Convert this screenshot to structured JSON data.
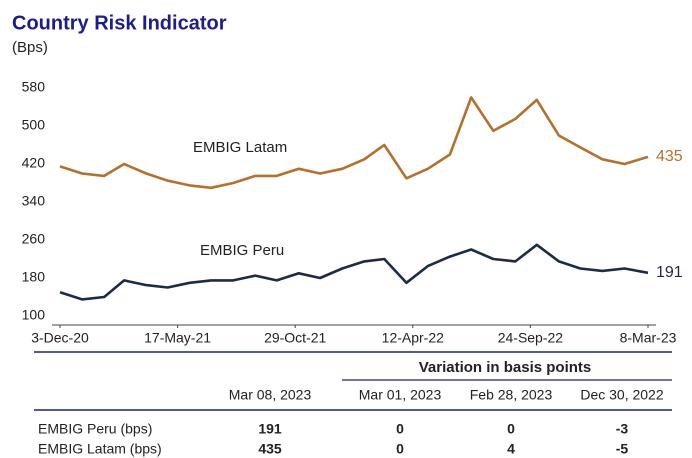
{
  "chart_data": {
    "type": "line",
    "title": "Country Risk Indicator",
    "subtitle": "(Bps)",
    "x": [
      "2020-12-03",
      "2021-01-03",
      "2021-02-03",
      "2021-03-03",
      "2021-04-03",
      "2021-05-03",
      "2021-06-03",
      "2021-07-03",
      "2021-08-03",
      "2021-09-03",
      "2021-10-03",
      "2021-11-03",
      "2021-12-03",
      "2022-01-03",
      "2022-02-03",
      "2022-03-03",
      "2022-04-03",
      "2022-05-03",
      "2022-06-03",
      "2022-07-03",
      "2022-08-03",
      "2022-09-03",
      "2022-10-03",
      "2022-11-03",
      "2022-12-03",
      "2023-01-03",
      "2023-02-03",
      "2023-03-08"
    ],
    "series": [
      {
        "name": "EMBIG Latam",
        "color": "#b5702c",
        "values": [
          415,
          400,
          395,
          420,
          400,
          385,
          375,
          370,
          380,
          395,
          395,
          410,
          400,
          410,
          430,
          460,
          390,
          410,
          440,
          560,
          490,
          515,
          555,
          480,
          455,
          430,
          420,
          435
        ]
      },
      {
        "name": "EMBIG Peru",
        "color": "#1c2b48",
        "values": [
          150,
          135,
          140,
          175,
          165,
          160,
          170,
          175,
          175,
          185,
          175,
          190,
          180,
          200,
          215,
          220,
          170,
          205,
          225,
          240,
          220,
          215,
          250,
          215,
          200,
          195,
          200,
          191
        ]
      }
    ],
    "xlim": [
      "2020-12-03",
      "2023-03-08"
    ],
    "xticks": [
      {
        "value": "2020-12-03",
        "label": "3-Dec-20"
      },
      {
        "value": "2021-05-17",
        "label": "17-May-21"
      },
      {
        "value": "2021-10-29",
        "label": "29-Oct-21"
      },
      {
        "value": "2022-04-12",
        "label": "12-Apr-22"
      },
      {
        "value": "2022-09-24",
        "label": "24-Sep-22"
      },
      {
        "value": "2023-03-08",
        "label": "8-Mar-23"
      }
    ],
    "ylim": [
      100,
      580
    ],
    "yticks": [
      100,
      180,
      260,
      340,
      420,
      500,
      580
    ],
    "grid": false
  },
  "table": {
    "group_header": "Variation in basis points",
    "columns": [
      "Mar 08, 2023",
      "Mar 01, 2023",
      "Feb 28, 2023",
      "Dec 30, 2022"
    ],
    "rows": [
      [
        "EMBIG Peru (bps)",
        191,
        0,
        0,
        -3
      ],
      [
        "EMBIG Latam (bps)",
        435,
        0,
        4,
        -5
      ]
    ]
  }
}
